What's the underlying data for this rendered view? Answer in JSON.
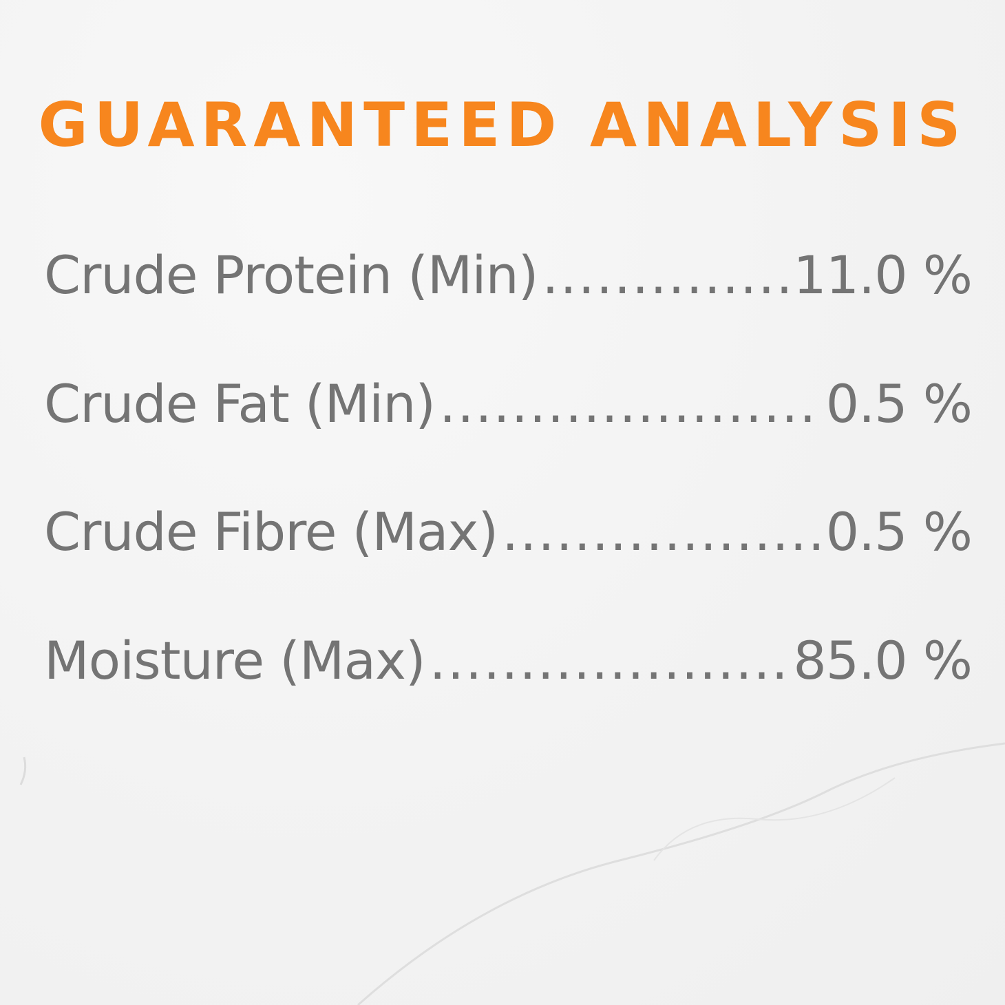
{
  "title": "GUARANTEED ANALYSIS",
  "colors": {
    "title": "#f7861e",
    "text": "#747474",
    "background": "#f3f3f3"
  },
  "rows": [
    {
      "label": "Crude Protein (Min)",
      "value": "11.0 %"
    },
    {
      "label": "Crude Fat (Min)",
      "value": "0.5 %"
    },
    {
      "label": "Crude Fibre (Max)",
      "value": "0.5 %"
    },
    {
      "label": "Moisture (Max)",
      "value": "85.0 %"
    }
  ]
}
